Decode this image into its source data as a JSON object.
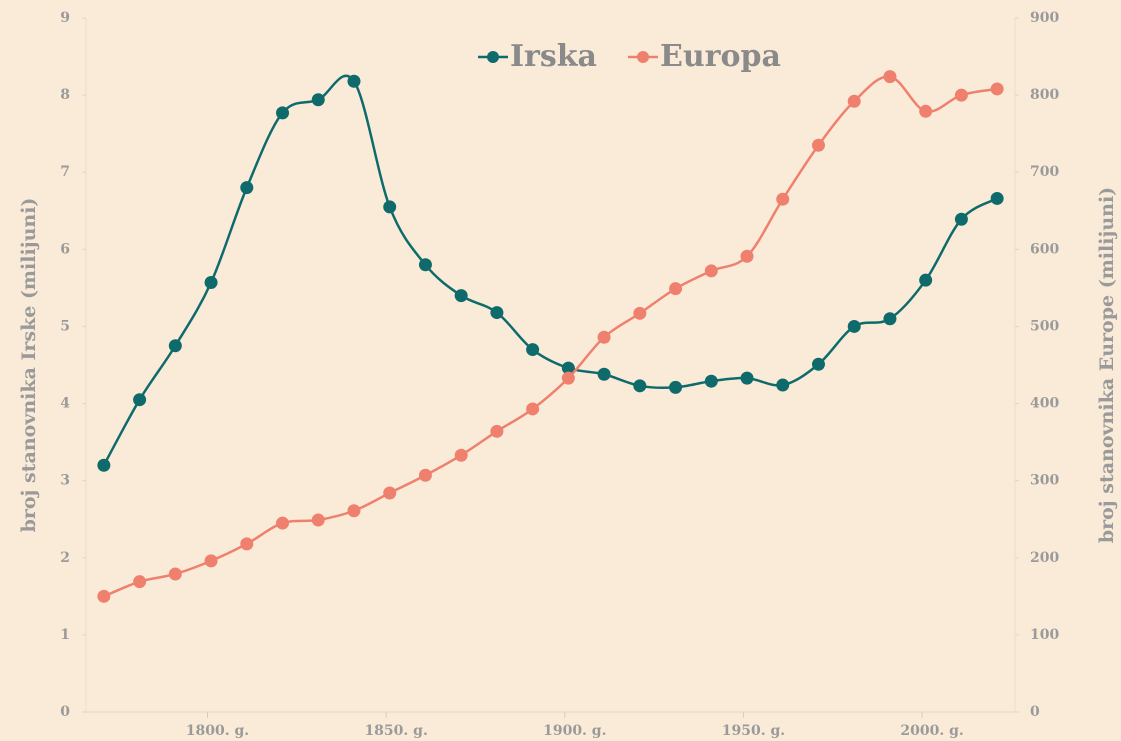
{
  "chart_data": {
    "type": "line",
    "x": [
      1771,
      1781,
      1791,
      1801,
      1811,
      1821,
      1831,
      1841,
      1851,
      1861,
      1871,
      1881,
      1891,
      1901,
      1911,
      1921,
      1931,
      1941,
      1951,
      1961,
      1971,
      1981,
      1991,
      2001,
      2011,
      2021
    ],
    "series": [
      {
        "name": "Irska",
        "color": "#0f6b6b",
        "values": [
          3.2,
          4.05,
          4.75,
          5.57,
          6.8,
          7.77,
          7.94,
          8.18,
          6.55,
          5.8,
          5.4,
          5.18,
          4.7,
          4.46,
          4.38,
          4.23,
          4.21,
          4.29,
          4.33,
          4.24,
          4.51,
          5.0,
          5.1,
          5.6,
          6.39,
          6.66
        ]
      },
      {
        "name": "Europa",
        "color": "#f0806e",
        "axis": "y2",
        "values": [
          150,
          169,
          179,
          196,
          218,
          245,
          249,
          261,
          284,
          307,
          333,
          364,
          393,
          433,
          486,
          517,
          549,
          572,
          591,
          665,
          735,
          792,
          824,
          779,
          800,
          808
        ]
      }
    ],
    "xlim": [
      1766,
      2026
    ],
    "xticks": [
      {
        "value": 1800,
        "label": "1800. g."
      },
      {
        "value": 1850,
        "label": "1850. g."
      },
      {
        "value": 1900,
        "label": "1900. g."
      },
      {
        "value": 1950,
        "label": "1950. g."
      },
      {
        "value": 2000,
        "label": "2000. g."
      }
    ],
    "ylim": [
      0,
      9
    ],
    "yticks": [
      0,
      1,
      2,
      3,
      4,
      5,
      6,
      7,
      8,
      9
    ],
    "y2lim": [
      0,
      900
    ],
    "y2ticks": [
      0,
      100,
      200,
      300,
      400,
      500,
      600,
      700,
      800,
      900
    ],
    "ylabel": "broj stanovnika Irske (milijuni)",
    "y2label": "broj stanovnika Europe (milijuni)",
    "legend": "top"
  }
}
